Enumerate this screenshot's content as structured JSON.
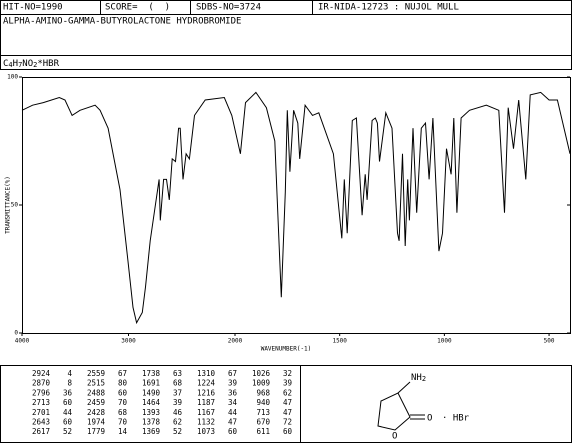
{
  "header": {
    "hit_no": "HIT-NO=1990",
    "score": "SCORE=  (  )",
    "sdbs_no": "SDBS-NO=3724",
    "ir": "IR-NIDA-12723 : NUJOL MULL",
    "name": "ALPHA-AMINO-GAMMA-BUTYROLACTONE HYDROBROMIDE",
    "formula": "C4H7NO2*HBR"
  },
  "chart_data": {
    "type": "line",
    "color": "#000000",
    "xlabel": "WAVENUMBER(-1)",
    "ylabel": "TRANSMITTANCE(%)",
    "xlim": [
      4000,
      400
    ],
    "x_break": 2000,
    "ylim": [
      0,
      100
    ],
    "xticks": [
      4000,
      3000,
      2000,
      1500,
      1000,
      500
    ],
    "yticks": [
      0,
      50,
      100
    ],
    "x": [
      4000,
      3900,
      3800,
      3650,
      3596,
      3530,
      3455,
      3314,
      3267,
      3192,
      3080,
      3005,
      2958,
      2924,
      2870,
      2840,
      2796,
      2713,
      2701,
      2670,
      2643,
      2617,
      2590,
      2559,
      2530,
      2515,
      2488,
      2459,
      2428,
      2380,
      2280,
      2100,
      2030,
      1974,
      1950,
      1900,
      1850,
      1810,
      1779,
      1760,
      1750,
      1738,
      1720,
      1700,
      1691,
      1665,
      1630,
      1600,
      1530,
      1490,
      1478,
      1464,
      1440,
      1420,
      1393,
      1378,
      1369,
      1345,
      1330,
      1320,
      1310,
      1280,
      1250,
      1224,
      1216,
      1200,
      1187,
      1175,
      1167,
      1150,
      1132,
      1110,
      1090,
      1073,
      1055,
      1026,
      1009,
      990,
      968,
      955,
      940,
      920,
      880,
      800,
      740,
      713,
      695,
      670,
      645,
      611,
      590,
      540,
      500,
      460,
      400
    ],
    "values": [
      87,
      89,
      90,
      92,
      91,
      85,
      87,
      89,
      87,
      80,
      56,
      28,
      10,
      4,
      8,
      18,
      36,
      60,
      44,
      60,
      60,
      52,
      68,
      67,
      80,
      80,
      60,
      70,
      68,
      85,
      91,
      92,
      85,
      70,
      90,
      94,
      88,
      75,
      14,
      55,
      87,
      63,
      87,
      82,
      68,
      89,
      85,
      86,
      70,
      37,
      60,
      39,
      83,
      84,
      46,
      62,
      52,
      83,
      84,
      82,
      67,
      86,
      80,
      39,
      36,
      70,
      34,
      60,
      44,
      80,
      47,
      80,
      82,
      60,
      84,
      32,
      39,
      72,
      62,
      84,
      47,
      84,
      87,
      89,
      87,
      47,
      88,
      72,
      91,
      60,
      93,
      94,
      91,
      91,
      70
    ]
  },
  "peak_table": {
    "rows": [
      [
        2924,
        4,
        2559,
        67,
        1738,
        63,
        1310,
        67,
        1026,
        32
      ],
      [
        2870,
        8,
        2515,
        80,
        1691,
        68,
        1224,
        39,
        1009,
        39
      ],
      [
        2796,
        36,
        2488,
        60,
        1490,
        37,
        1216,
        36,
        968,
        62
      ],
      [
        2713,
        60,
        2459,
        70,
        1464,
        39,
        1187,
        34,
        940,
        47
      ],
      [
        2701,
        44,
        2428,
        68,
        1393,
        46,
        1167,
        44,
        713,
        47
      ],
      [
        2643,
        60,
        1974,
        70,
        1378,
        62,
        1132,
        47,
        670,
        72
      ],
      [
        2617,
        52,
        1779,
        14,
        1369,
        52,
        1073,
        60,
        611,
        60
      ]
    ]
  },
  "structure": {
    "amine": "NH2",
    "carbonyl_o": "O",
    "ring_o": "O",
    "salt": "· HBr"
  }
}
